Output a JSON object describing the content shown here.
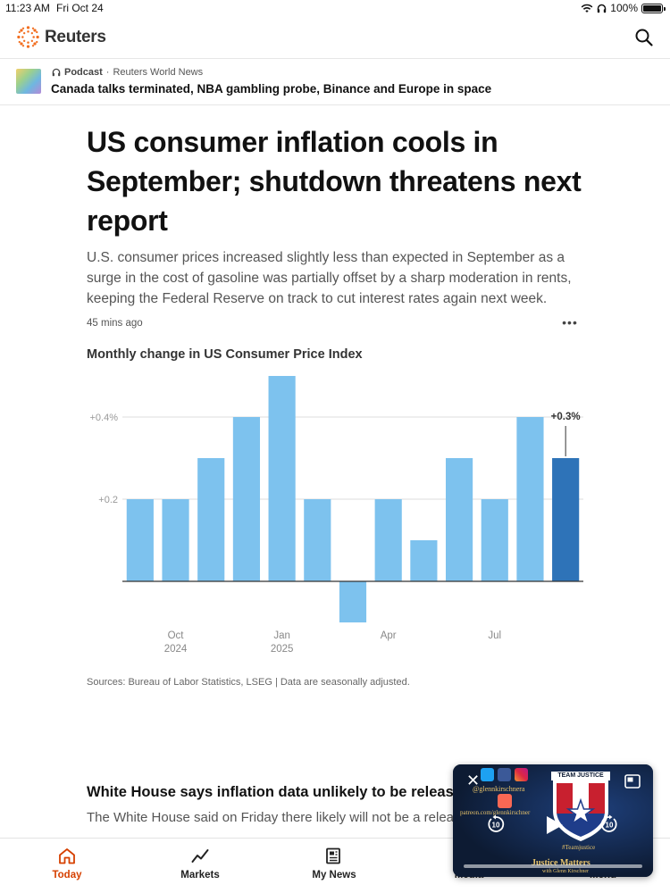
{
  "status_bar": {
    "time": "11:23 AM",
    "date": "Fri Oct 24",
    "battery": "100%"
  },
  "header": {
    "brand": "Reuters"
  },
  "podcast": {
    "kind": "Podcast",
    "separator": "·",
    "show": "Reuters World News",
    "title": "Canada talks terminated, NBA gambling probe, Binance and Europe in space"
  },
  "article": {
    "headline": "US consumer inflation cools in September; shutdown threatens next report",
    "summary": "U.S. consumer prices increased slightly less than expected in September as a surge in the cost of gasoline was partially offset by a sharp moderation in rents, keeping the Federal Reserve on track to cut interest rates again next week.",
    "timestamp": "45 mins ago",
    "more": "•••",
    "chart_title": "Monthly change in US Consumer Price Index",
    "source": "Sources: Bureau of Labor Statistics, LSEG | Data are seasonally adjusted."
  },
  "chart_data": {
    "type": "bar",
    "title": "Monthly change in US Consumer Price Index",
    "categories": [
      "Sep 2024",
      "Oct 2024",
      "Nov 2024",
      "Dec 2024",
      "Jan 2025",
      "Feb 2025",
      "Mar 2025",
      "Apr 2025",
      "May 2025",
      "Jun 2025",
      "Jul 2025",
      "Aug 2025",
      "Sep 2025"
    ],
    "values": [
      0.2,
      0.2,
      0.3,
      0.4,
      0.5,
      0.2,
      -0.1,
      0.2,
      0.1,
      0.3,
      0.2,
      0.4,
      0.3
    ],
    "highlight_index": 12,
    "highlight_label": "+0.3%",
    "ylim": [
      -0.1,
      0.5
    ],
    "yticks": [
      {
        "value": 0.4,
        "label": "+0.4%"
      },
      {
        "value": 0.2,
        "label": "+0.2"
      }
    ],
    "xticks": [
      {
        "index": 1,
        "label": "Oct",
        "sublabel": "2024"
      },
      {
        "index": 4,
        "label": "Jan",
        "sublabel": "2025"
      },
      {
        "index": 7,
        "label": "Apr",
        "sublabel": ""
      },
      {
        "index": 10,
        "label": "Jul",
        "sublabel": ""
      }
    ],
    "colors": {
      "bar": "#7dc2ee",
      "highlight": "#2e73b8",
      "grid": "#dddddd",
      "axis": "#333333"
    }
  },
  "next_article": {
    "headline": "White House says inflation data unlikely to be released",
    "summary": "The White House said on Friday there likely will not be a release next month due to the U.S. government shutdown"
  },
  "video": {
    "handle": "@glennkirschnera",
    "patreon": "patreon.com/glennkirschner",
    "team": "TEAM JUSTICE",
    "tag": "#Teamjustice",
    "show": "Justice Matters",
    "host": "with Glenn Kirschner",
    "skip_back": "10",
    "skip_forward": "10"
  },
  "bottom_nav": {
    "items": [
      {
        "label": "Today"
      },
      {
        "label": "Markets"
      },
      {
        "label": "My News"
      },
      {
        "label": "Media"
      },
      {
        "label": "Menu"
      }
    ]
  },
  "colors": {
    "accent": "#d64000"
  }
}
